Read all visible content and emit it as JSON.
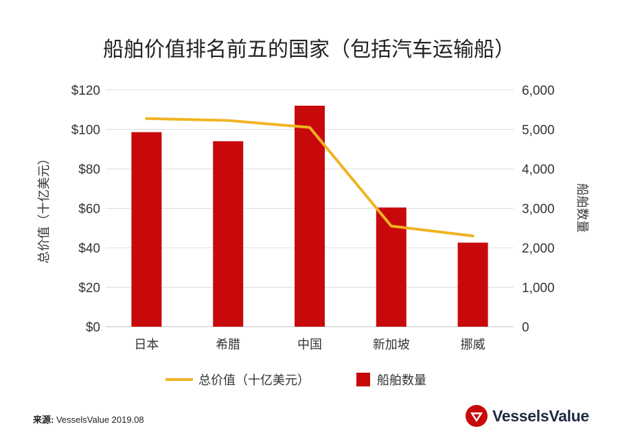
{
  "chart_data": {
    "type": "bar+line",
    "title": "船舶价值排名前五的国家（包括汽车运输船）",
    "categories": [
      "日本",
      "希腊",
      "中国",
      "新加坡",
      "挪威"
    ],
    "series": [
      {
        "name": "总价值（十亿美元）",
        "type": "line",
        "axis": "left",
        "color": "#f0b323",
        "values": [
          105.5,
          104.5,
          101,
          51,
          46
        ]
      },
      {
        "name": "船舶数量",
        "type": "bar",
        "axis": "right",
        "color": "#c8090c",
        "values": [
          4930,
          4700,
          5600,
          3020,
          2130
        ]
      }
    ],
    "ylabel_left": "总价值（十亿美元）",
    "ylabel_right": "船舶数量",
    "ylim_left": [
      0,
      120
    ],
    "ylim_right": [
      0,
      6000
    ],
    "yticks_left": [
      "$0",
      "$20",
      "$40",
      "$60",
      "$80",
      "$100",
      "$120"
    ],
    "yticks_right": [
      "0",
      "1,000",
      "2,000",
      "3,000",
      "4,000",
      "5,000",
      "6,000"
    ],
    "grid": true,
    "legend_position": "bottom"
  },
  "footer": {
    "source_label": "来源:",
    "source_text": "VesselsValue 2019.08",
    "logo_text": "VesselsValue",
    "logo_color": "#c8090c"
  }
}
